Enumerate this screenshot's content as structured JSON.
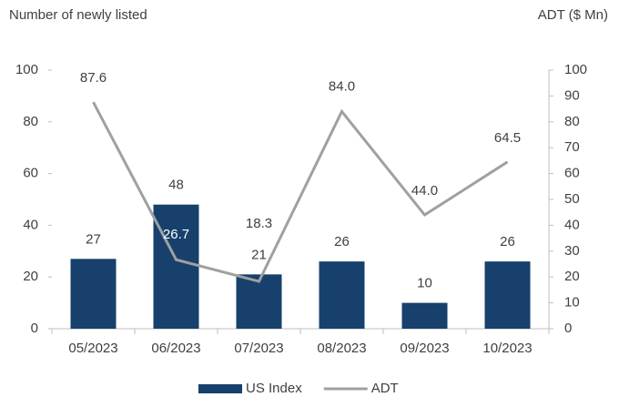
{
  "chart_data": {
    "type": "bar",
    "y_label": "Number of newly listed",
    "y2_label": "ADT ($ Mn)",
    "categories": [
      "05/2023",
      "06/2023",
      "07/2023",
      "08/2023",
      "09/2023",
      "10/2023"
    ],
    "series": [
      {
        "name": "US Index",
        "color": "#17406d",
        "values": [
          27,
          48,
          21,
          26,
          10,
          26
        ]
      },
      {
        "name": "ADT",
        "type": "line",
        "axis": "y2",
        "color": "#a0a0a0",
        "values": [
          87.6,
          26.7,
          18.3,
          84.0,
          44.0,
          64.5
        ],
        "value_labels": [
          "87.6",
          "26.7",
          "18.3",
          "84.0",
          "44.0",
          "64.5"
        ]
      }
    ],
    "ylim": [
      0,
      100
    ],
    "yticks": [
      0,
      20,
      40,
      60,
      80,
      100
    ],
    "y2lim": [
      0,
      100
    ],
    "y2ticks": [
      0,
      10,
      20,
      30,
      40,
      50,
      60,
      70,
      80,
      90,
      100
    ],
    "grid": false,
    "legend": "bottom"
  }
}
